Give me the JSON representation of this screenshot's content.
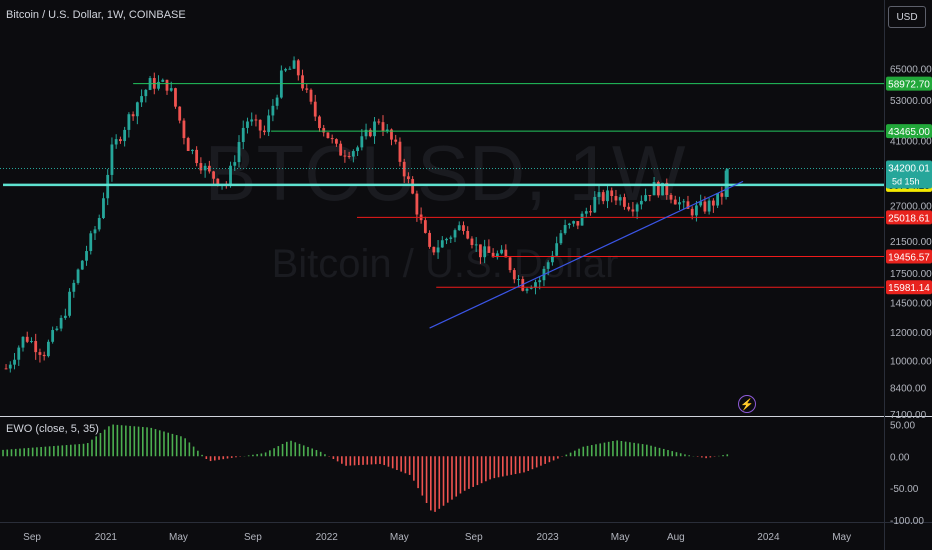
{
  "header": {
    "title": "Bitcoin / U.S. Dollar, 1W, COINBASE",
    "currency": "USD"
  },
  "watermark": {
    "symbol": "BTCUSD, 1W",
    "name": "Bitcoin / U.S. Dollar"
  },
  "indicator": {
    "title": "EWO (close, 5, 35)",
    "colors": {
      "positive": "#4caf50",
      "negative": "#ef5350"
    }
  },
  "colors": {
    "background": "#0c0c0f",
    "up_candle": "#26a69a",
    "down_candle": "#ef5350",
    "support_line": "#ef1a1a",
    "resistance_line": "#22c55e",
    "key_level": "#5fe3d1",
    "trendline": "#3b55e6",
    "price_label": "#26a69a",
    "current_label": "#f5e900"
  },
  "chart_data": {
    "type": "candlestick",
    "title": "Bitcoin / U.S. Dollar, 1W, COINBASE",
    "y_scale": "log",
    "ylim": [
      7000,
      80000
    ],
    "y_ticks": [
      "65000.00",
      "53000.00",
      "41000.00",
      "27000.00",
      "21500.00",
      "17500.00",
      "14500.00",
      "12000.00",
      "10000.00",
      "8400.00",
      "7100.00"
    ],
    "x_ticks": [
      "Sep",
      "2021",
      "May",
      "Sep",
      "2022",
      "May",
      "Sep",
      "2023",
      "May",
      "Aug",
      "2024",
      "May"
    ],
    "x_tick_dates": [
      "2020-09-01",
      "2021-01-01",
      "2021-05-01",
      "2021-09-01",
      "2022-01-01",
      "2022-05-01",
      "2022-09-01",
      "2023-01-01",
      "2023-05-01",
      "2023-08-01",
      "2024-01-01",
      "2024-05-01"
    ],
    "horizontal_levels": [
      {
        "value": 58972.7,
        "label": "58972.70",
        "kind": "resistance",
        "start": "2021-02-15"
      },
      {
        "value": 43465.0,
        "label": "43465.00",
        "kind": "resistance",
        "start": "2021-10-01"
      },
      {
        "value": 30794.23,
        "label": "30794.23",
        "kind": "key",
        "start": "2020-07-15"
      },
      {
        "value": 25018.61,
        "label": "25018.61",
        "kind": "support",
        "start": "2022-02-20"
      },
      {
        "value": 19456.57,
        "label": "19456.57",
        "kind": "support",
        "start": "2022-10-01"
      },
      {
        "value": 15981.14,
        "label": "15981.14",
        "kind": "support",
        "start": "2022-07-01"
      }
    ],
    "last_price": {
      "value": 34200.01,
      "label": "34200.01",
      "countdown": "5d 15h"
    },
    "trendline": {
      "points": [
        {
          "date": "2022-06-20",
          "price": 12300
        },
        {
          "date": "2023-11-20",
          "price": 31500
        }
      ]
    },
    "price_anchors": [
      {
        "date": "2020-07-20",
        "price": 9500
      },
      {
        "date": "2020-08-20",
        "price": 11700
      },
      {
        "date": "2020-09-20",
        "price": 10500
      },
      {
        "date": "2020-10-20",
        "price": 12900
      },
      {
        "date": "2020-11-20",
        "price": 18500
      },
      {
        "date": "2020-12-20",
        "price": 24500
      },
      {
        "date": "2021-01-10",
        "price": 38000
      },
      {
        "date": "2021-02-20",
        "price": 52000
      },
      {
        "date": "2021-03-15",
        "price": 59000
      },
      {
        "date": "2021-04-15",
        "price": 58500
      },
      {
        "date": "2021-05-15",
        "price": 40000
      },
      {
        "date": "2021-06-20",
        "price": 33000
      },
      {
        "date": "2021-07-20",
        "price": 31000
      },
      {
        "date": "2021-08-20",
        "price": 47000
      },
      {
        "date": "2021-09-20",
        "price": 43000
      },
      {
        "date": "2021-10-20",
        "price": 63000
      },
      {
        "date": "2021-11-10",
        "price": 66000
      },
      {
        "date": "2021-12-10",
        "price": 49000
      },
      {
        "date": "2022-01-20",
        "price": 38000
      },
      {
        "date": "2022-02-20",
        "price": 39000
      },
      {
        "date": "2022-03-28",
        "price": 47000
      },
      {
        "date": "2022-04-25",
        "price": 39000
      },
      {
        "date": "2022-05-20",
        "price": 30000
      },
      {
        "date": "2022-06-20",
        "price": 20000
      },
      {
        "date": "2022-07-20",
        "price": 22000
      },
      {
        "date": "2022-08-15",
        "price": 24000
      },
      {
        "date": "2022-09-10",
        "price": 20000
      },
      {
        "date": "2022-10-20",
        "price": 19500
      },
      {
        "date": "2022-11-20",
        "price": 16200
      },
      {
        "date": "2022-12-20",
        "price": 16800
      },
      {
        "date": "2023-01-25",
        "price": 23000
      },
      {
        "date": "2023-02-20",
        "price": 24200
      },
      {
        "date": "2023-03-20",
        "price": 28000
      },
      {
        "date": "2023-04-20",
        "price": 29000
      },
      {
        "date": "2023-05-20",
        "price": 27000
      },
      {
        "date": "2023-06-25",
        "price": 30400
      },
      {
        "date": "2023-07-20",
        "price": 29500
      },
      {
        "date": "2023-08-20",
        "price": 26000
      },
      {
        "date": "2023-09-20",
        "price": 26800
      },
      {
        "date": "2023-10-15",
        "price": 28500
      },
      {
        "date": "2023-10-25",
        "price": 34200
      }
    ],
    "ewo": {
      "ylim": [
        -100,
        60
      ],
      "y_ticks": [
        "50.00",
        "0.00",
        "-50.00",
        "-100.00"
      ],
      "anchors": [
        {
          "date": "2020-07-15",
          "value": 10
        },
        {
          "date": "2020-12-01",
          "value": 20
        },
        {
          "date": "2021-01-10",
          "value": 50
        },
        {
          "date": "2021-03-15",
          "value": 45
        },
        {
          "date": "2021-05-10",
          "value": 30
        },
        {
          "date": "2021-06-20",
          "value": -8
        },
        {
          "date": "2021-08-01",
          "value": -2
        },
        {
          "date": "2021-09-20",
          "value": 5
        },
        {
          "date": "2021-11-01",
          "value": 25
        },
        {
          "date": "2021-12-20",
          "value": 8
        },
        {
          "date": "2022-02-01",
          "value": -15
        },
        {
          "date": "2022-04-01",
          "value": -12
        },
        {
          "date": "2022-05-20",
          "value": -30
        },
        {
          "date": "2022-06-25",
          "value": -90
        },
        {
          "date": "2022-08-15",
          "value": -55
        },
        {
          "date": "2022-10-01",
          "value": -35
        },
        {
          "date": "2022-11-25",
          "value": -25
        },
        {
          "date": "2023-01-15",
          "value": -5
        },
        {
          "date": "2023-03-01",
          "value": 15
        },
        {
          "date": "2023-04-25",
          "value": 25
        },
        {
          "date": "2023-06-15",
          "value": 18
        },
        {
          "date": "2023-08-20",
          "value": 2
        },
        {
          "date": "2023-09-20",
          "value": -3
        },
        {
          "date": "2023-10-25",
          "value": 3
        }
      ]
    }
  }
}
